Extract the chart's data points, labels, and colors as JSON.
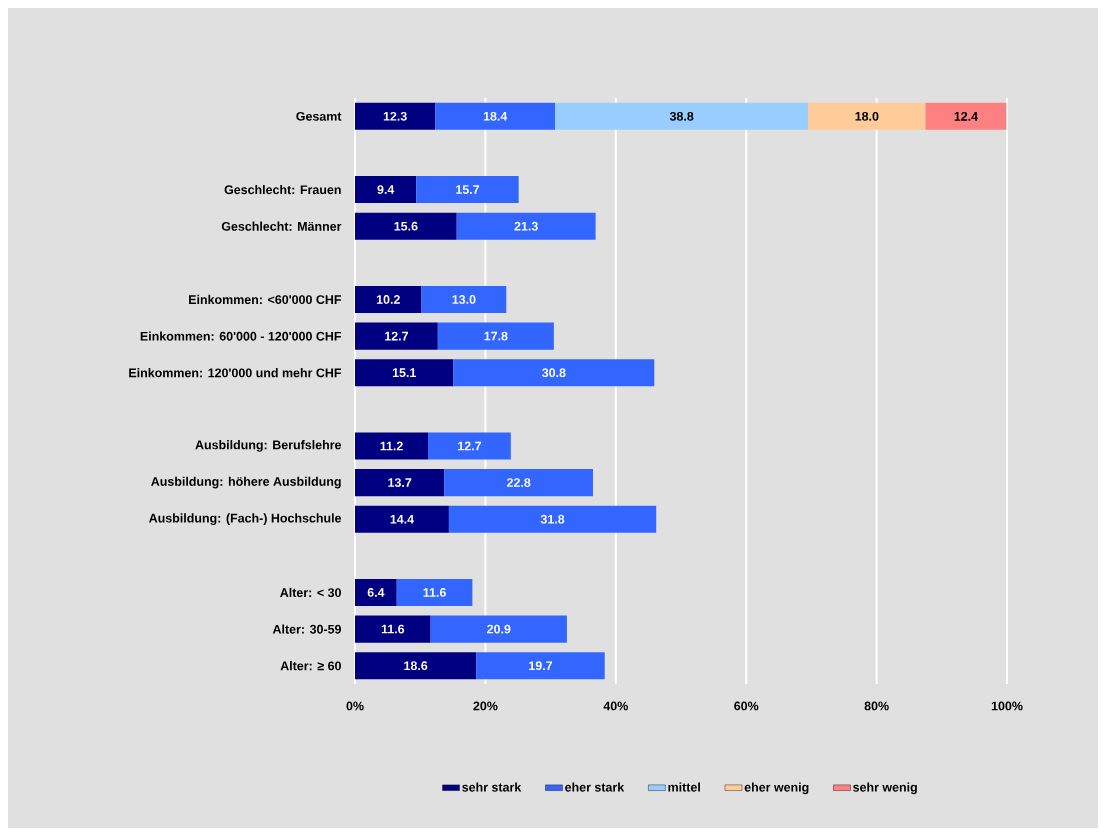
{
  "chart_data": {
    "type": "bar",
    "orientation": "horizontal",
    "stacked": true,
    "grid": "x",
    "legend": "bottom",
    "categories": [
      "Gesamt",
      null,
      "Geschlecht: Frauen",
      "Geschlecht: Männer",
      null,
      "Einkommen: <60'000 CHF",
      "Einkommen: 60'000 - 120'000 CHF",
      "Einkommen: 120'000 und mehr CHF",
      null,
      "Ausbildung: Berufslehre",
      "Ausbildung: höhere Ausbildung",
      "Ausbildung: (Fach-) Hochschule",
      null,
      "Alter: < 30",
      "Alter: 30-59",
      "Alter: ≥ 60"
    ],
    "series": [
      {
        "name": "sehr stark",
        "color": "#000080",
        "values": [
          12.3,
          null,
          9.4,
          15.6,
          null,
          10.2,
          12.7,
          15.1,
          null,
          11.2,
          13.7,
          14.4,
          null,
          6.4,
          11.6,
          18.6
        ],
        "value_labels": [
          "12.3",
          null,
          "9.4",
          "15.6",
          null,
          "10.2",
          "12.7",
          "15.1",
          null,
          "11.2",
          "13.7",
          "14.4",
          null,
          "6.4",
          "11.6",
          "18.6"
        ]
      },
      {
        "name": "eher stark",
        "color": "#3366ff",
        "values": [
          18.4,
          null,
          15.7,
          21.3,
          null,
          13.0,
          17.8,
          30.8,
          null,
          12.7,
          22.8,
          31.8,
          null,
          11.6,
          20.9,
          19.7
        ],
        "value_labels": [
          "18.4",
          null,
          "15.7",
          "21.3",
          null,
          "13.0",
          "17.8",
          "30.8",
          null,
          "12.7",
          "22.8",
          "31.8",
          null,
          "11.6",
          "20.9",
          "19.7"
        ]
      },
      {
        "name": "mittel",
        "color": "#99ccff",
        "values": [
          38.8,
          null,
          null,
          null,
          null,
          null,
          null,
          null,
          null,
          null,
          null,
          null,
          null,
          null,
          null,
          null
        ],
        "value_labels": [
          "38.8",
          null,
          null,
          null,
          null,
          null,
          null,
          null,
          null,
          null,
          null,
          null,
          null,
          null,
          null,
          null
        ]
      },
      {
        "name": "eher wenig",
        "color": "#ffcc99",
        "values": [
          18.0,
          null,
          null,
          null,
          null,
          null,
          null,
          null,
          null,
          null,
          null,
          null,
          null,
          null,
          null,
          null
        ],
        "value_labels": [
          "18.0",
          null,
          null,
          null,
          null,
          null,
          null,
          null,
          null,
          null,
          null,
          null,
          null,
          null,
          null,
          null
        ]
      },
      {
        "name": "sehr wenig",
        "color": "#ff8080",
        "values": [
          12.4,
          null,
          null,
          null,
          null,
          null,
          null,
          null,
          null,
          null,
          null,
          null,
          null,
          null,
          null,
          null
        ],
        "value_labels": [
          "12.4",
          null,
          null,
          null,
          null,
          null,
          null,
          null,
          null,
          null,
          null,
          null,
          null,
          null,
          null,
          null
        ]
      }
    ],
    "xlim": [
      0,
      100
    ],
    "xticks": [
      {
        "value": 0,
        "label": "0%"
      },
      {
        "value": 20,
        "label": "20%"
      },
      {
        "value": 40,
        "label": "40%"
      },
      {
        "value": 60,
        "label": "60%"
      },
      {
        "value": 80,
        "label": "80%"
      },
      {
        "value": 100,
        "label": "100%"
      }
    ]
  }
}
